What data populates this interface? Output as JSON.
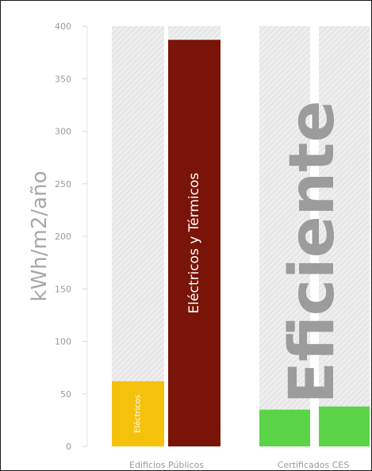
{
  "chart_data": {
    "type": "bar",
    "ylabel": "kWh/m2/año",
    "ylim": [
      0,
      400
    ],
    "yticks": [
      0,
      50,
      100,
      150,
      200,
      250,
      300,
      350,
      400
    ],
    "grid": false,
    "groups": [
      {
        "label": "Edificios Públicos",
        "bars": [
          {
            "label": "Eléctricos",
            "value": 62,
            "color": "#f4c20d",
            "max": 400
          },
          {
            "label": "Eléctricos y Térmicos",
            "value": 387,
            "color": "#7a1408",
            "max": 400
          }
        ]
      },
      {
        "label": "Certificados CES",
        "bars": [
          {
            "label": "",
            "value": 35,
            "color": "#5bd448",
            "max": 400
          },
          {
            "label": "",
            "value": 38,
            "color": "#5bd448",
            "max": 400
          }
        ]
      }
    ],
    "annotation": "Eficiente",
    "background_bar_color": "#eeeeee",
    "background_hatch_color": "#dedede"
  }
}
